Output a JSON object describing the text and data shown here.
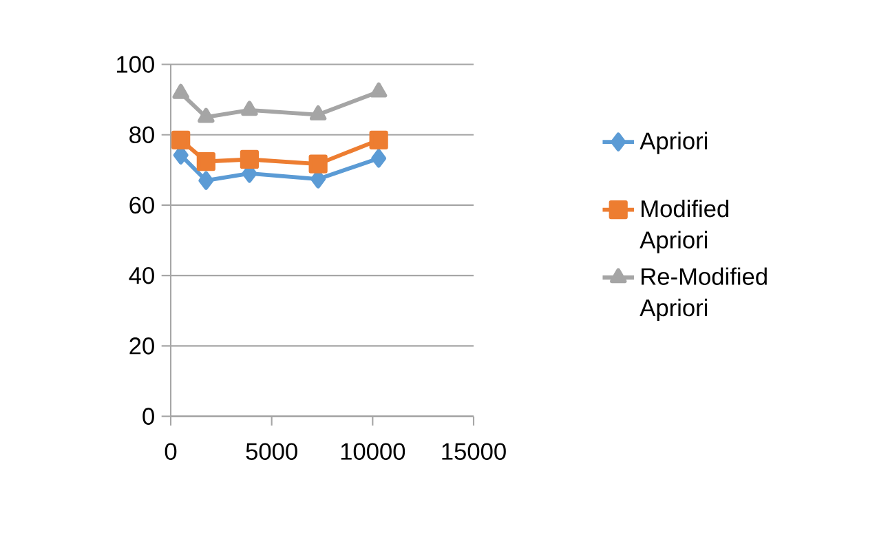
{
  "chart_data": {
    "type": "line",
    "x": [
      500,
      1750,
      3900,
      7300,
      10300
    ],
    "series": [
      {
        "name": "Apriori",
        "color": "#5b9bd5",
        "marker": "diamond",
        "values": [
          74.2,
          67.0,
          69.0,
          67.4,
          73.3
        ]
      },
      {
        "name": "Modified Apriori",
        "color": "#ed7d31",
        "marker": "square",
        "values": [
          78.5,
          72.4,
          73.0,
          71.7,
          78.5
        ]
      },
      {
        "name": "Re-Modified Apriori",
        "color": "#a5a5a5",
        "marker": "triangle",
        "values": [
          91.8,
          85.0,
          87.0,
          85.7,
          92.2
        ]
      }
    ],
    "xlim": [
      0,
      15000
    ],
    "xticks": [
      0,
      5000,
      10000,
      15000
    ],
    "ylim": [
      0,
      100
    ],
    "yticks": [
      0,
      20,
      40,
      60,
      80,
      100
    ],
    "grid": "y",
    "legend": "right"
  }
}
